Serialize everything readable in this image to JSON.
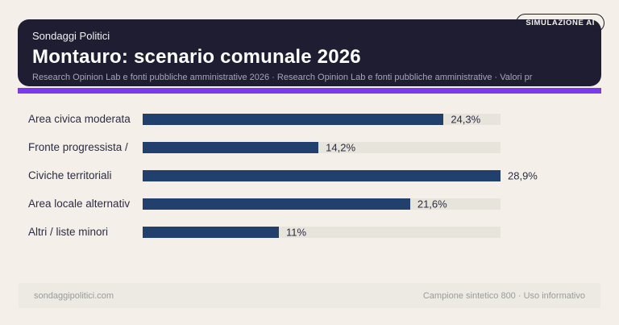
{
  "badge_label": "SIMULAZIONE AI",
  "header": {
    "kicker": "Sondaggi Politici",
    "title": "Montauro: scenario comunale 2026",
    "subtitle": "Research Opinion Lab e fonti pubbliche amministrative 2026 · Research Opinion Lab e fonti pubbliche amministrative · Valori pr"
  },
  "chart_data": {
    "type": "bar",
    "orientation": "horizontal",
    "title": "Montauro: scenario comunale 2026",
    "categories": [
      "Area civica moderata",
      "Fronte progressista /",
      "Civiche territoriali",
      "Area locale alternativ",
      "Altri / liste minori"
    ],
    "values": [
      24.3,
      14.2,
      28.9,
      21.6,
      11
    ],
    "value_labels": [
      "24,3%",
      "14,2%",
      "28,9%",
      "21,6%",
      "11%"
    ],
    "xlim": [
      0,
      28.9
    ],
    "grid": false,
    "legend": false,
    "bar_color": "#21406e",
    "track_color": "#e7e4dc"
  },
  "footer": {
    "left": "sondaggipolitici.com",
    "right": "Campione sintetico 800 · Uso informativo"
  },
  "colors": {
    "background": "#f4f0e9",
    "header_card": "#1e1d31",
    "accent": "#7c3aed",
    "bar": "#21406e",
    "track": "#e7e4dc",
    "text_ink": "#2c2c42",
    "footer_strip": "#eceae3",
    "footer_text": "#9b9b9b"
  }
}
